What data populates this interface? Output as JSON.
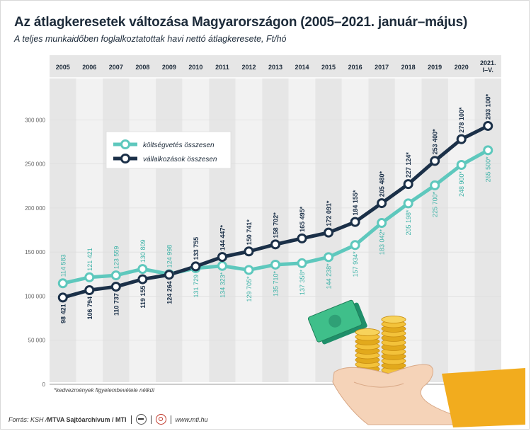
{
  "title": "Az átlagkeresetek változása Magyarországon (2005–2021. január–május)",
  "subtitle": "A teljes munkaidőben foglalkoztatottak havi nettó átlagkeresete, Ft/hó",
  "footnote": "*kedvezmények figyelembevétele nélkül",
  "footer": {
    "source": "Forrás: KSH / ",
    "archive": "MTVA Sajtóarchívum / MTI",
    "url": "www.mti.hu",
    "logo1": "mtva-logo",
    "logo2": "mti-logo"
  },
  "colors": {
    "koltsegvetes": "#5ec8bd",
    "koltsegvetes_text": "#3fb3a8",
    "vallalkozasok": "#1b3048",
    "grid": "#dedede",
    "band": "#e6e6e6",
    "band_alt": "#f2f2f2",
    "title": "#1d2b3a"
  },
  "illustration": {
    "hand": "hand-icon",
    "coins": "coin-stacks-icon",
    "banknotes": "banknotes-icon",
    "cuff": "sleeve-icon"
  },
  "chart_data": {
    "type": "line",
    "title": "Az átlagkeresetek változása Magyarországon (2005–2021. január–május)",
    "subtitle": "A teljes munkaidőben foglalkoztatottak havi nettó átlagkeresete, Ft/hó",
    "categories": [
      "2005",
      "2006",
      "2007",
      "2008",
      "2009",
      "2010",
      "2011",
      "2012",
      "2013",
      "2014",
      "2015",
      "2016",
      "2017",
      "2018",
      "2019",
      "2020",
      "2021.\nI–V."
    ],
    "ylim": [
      0,
      300000
    ],
    "yticks": [
      0,
      50000,
      100000,
      150000,
      200000,
      250000,
      300000
    ],
    "ytick_labels": [
      "0",
      "50 000",
      "100 000",
      "150 000",
      "200 000",
      "250 000",
      "300 000"
    ],
    "legend_position": "upper-left",
    "series": [
      {
        "name": "költségvetés összesen",
        "values": [
          114583,
          121421,
          123559,
          130809,
          124998,
          131729,
          134323,
          129705,
          135710,
          137358,
          144238,
          157934,
          183042,
          205198,
          225700,
          248900,
          265500
        ],
        "labels": [
          "114 583",
          "121 421",
          "123 559",
          "130 809",
          "124 998",
          "131 729",
          "134 323*",
          "129 705*",
          "135 710*",
          "137 358*",
          "144 238*",
          "157 934*",
          "183 042*",
          "205 198*",
          "225 700*",
          "248 900*",
          "265 500*"
        ]
      },
      {
        "name": "vállalkozások összesen",
        "values": [
          98421,
          106794,
          110737,
          119155,
          124264,
          133755,
          144447,
          150741,
          158702,
          165495,
          172091,
          184155,
          205480,
          227124,
          253400,
          278100,
          293100
        ],
        "labels": [
          "98 421",
          "106 794",
          "110 737",
          "119 155",
          "124 264",
          "133 755",
          "144 447*",
          "150 741*",
          "158 702*",
          "165 495*",
          "172 091*",
          "184 155*",
          "205 480*",
          "227 124*",
          "253 400*",
          "278 100*",
          "293 100*"
        ]
      }
    ]
  }
}
